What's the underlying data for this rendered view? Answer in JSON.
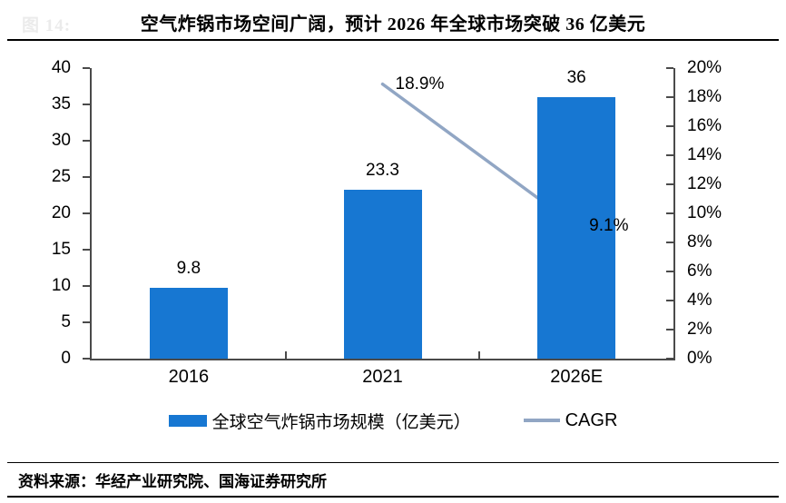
{
  "header": {
    "figure_label": "图 14:"
  },
  "chart_data": {
    "type": "bar",
    "subtype": "bar+line combo, dual axis",
    "title": "空气炸锅市场空间广阔，预计 2026 年全球市场突破 36 亿美元",
    "categories": [
      "2016",
      "2021",
      "2026E"
    ],
    "series": [
      {
        "name": "全球空气炸锅市场规模（亿美元）",
        "type": "bar",
        "axis": "left",
        "values": [
          9.8,
          23.3,
          36
        ],
        "labels": [
          "9.8",
          "23.3",
          "36"
        ],
        "color": "#1777D2"
      },
      {
        "name": "CAGR",
        "type": "line",
        "axis": "right",
        "values": [
          null,
          18.9,
          9.1
        ],
        "labels": [
          null,
          "18.9%",
          "9.1%"
        ],
        "color": "#91A6C4"
      }
    ],
    "left_axis": {
      "min": 0,
      "max": 40,
      "ticks": [
        "0",
        "5",
        "10",
        "15",
        "20",
        "25",
        "30",
        "35",
        "40"
      ]
    },
    "right_axis": {
      "min": 0,
      "max": 20,
      "ticks": [
        "0%",
        "2%",
        "4%",
        "6%",
        "8%",
        "10%",
        "12%",
        "14%",
        "16%",
        "18%",
        "20%"
      ]
    },
    "grid": false,
    "legend_position": "bottom"
  },
  "colors": {
    "bar": "#1777D2",
    "line": "#91A6C4",
    "axis": "#4a4a4a"
  },
  "footer": {
    "source": "资料来源：华经产业研究院、国海证券研究所"
  }
}
